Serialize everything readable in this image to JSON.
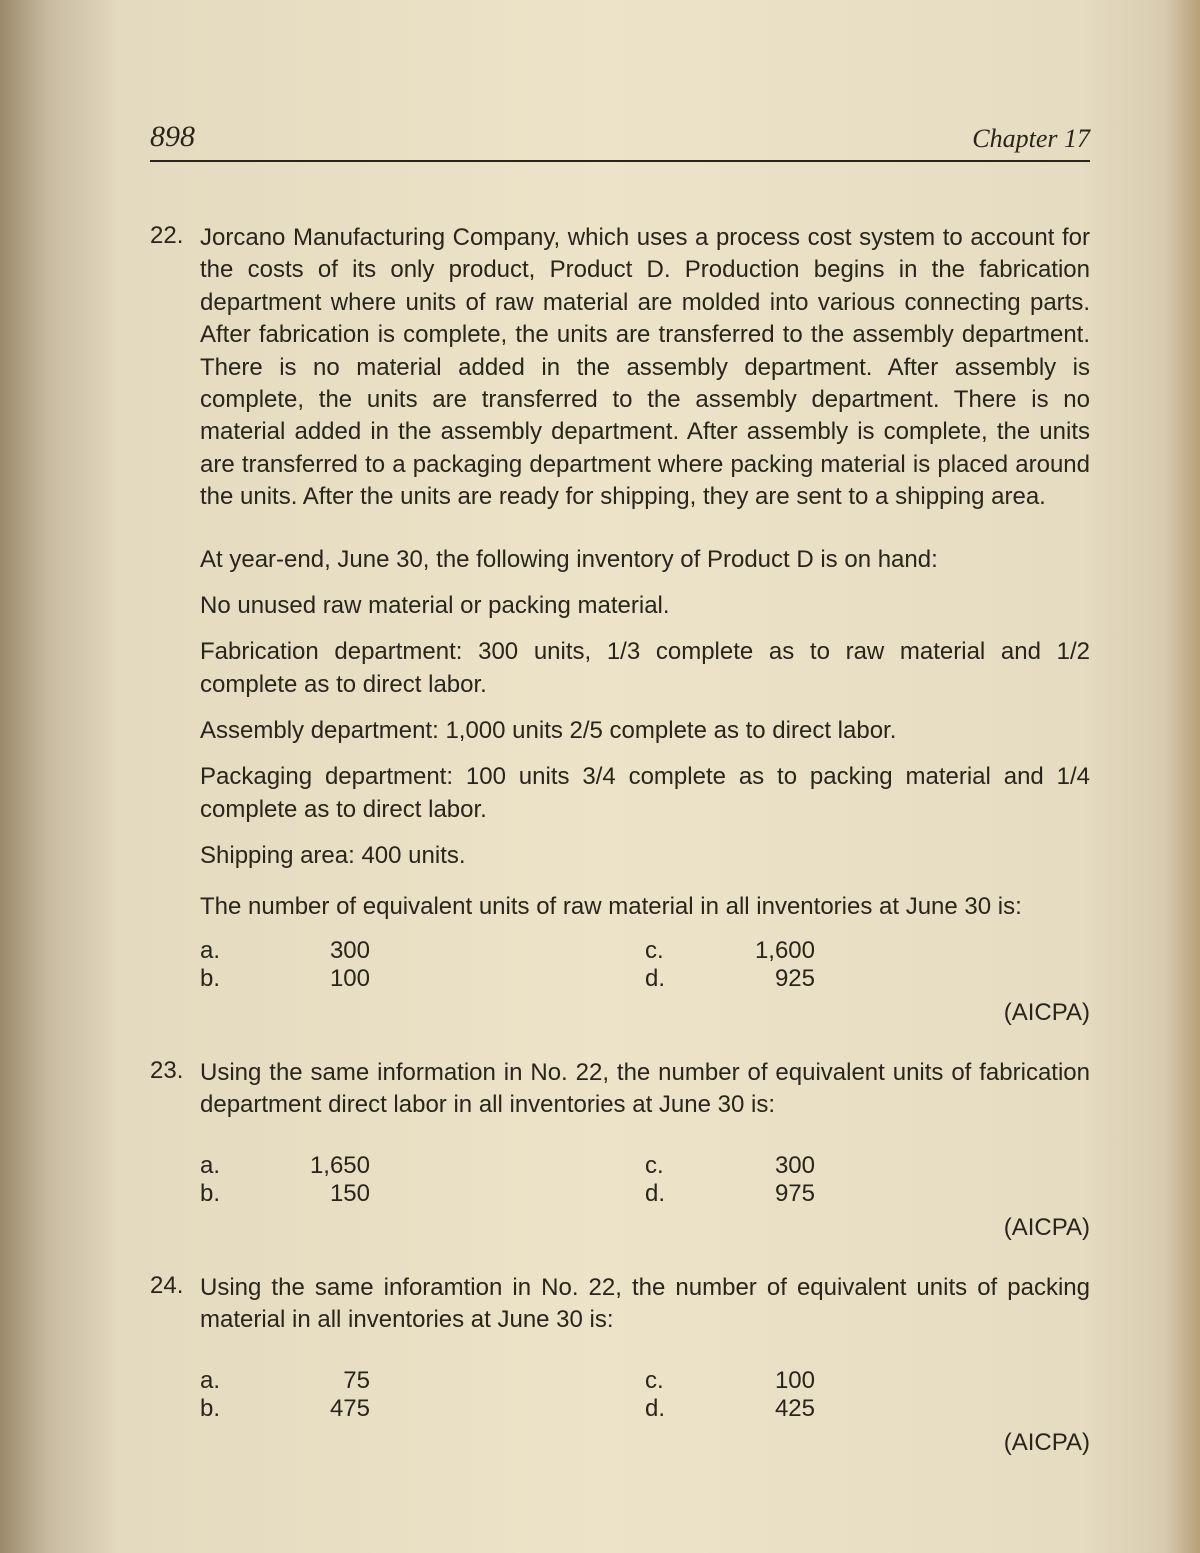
{
  "header": {
    "page_number": "898",
    "chapter": "Chapter 17"
  },
  "questions": [
    {
      "number": "22.",
      "text": "Jorcano Manufacturing Company, which uses a process cost system to account for the costs of its only product, Product D. Production begins in the fabrication department where units of raw material are molded into various connecting parts. After fabrication is complete, the units are transferred to the assembly department. There is no material added in the assembly department. After assembly is complete, the units are transferred to the assembly department. There is no material added in the assembly department. After assembly is complete, the units are transferred to a packaging department where packing material is placed around the units. After the units are ready for shipping, they are sent to a shipping area.",
      "lead": "At year-end, June 30, the following inventory of Product D is on hand:",
      "items": [
        "No unused raw material or packing material.",
        "Fabrication department: 300 units, 1/3 complete as to raw material and 1/2 complete as to direct labor.",
        "Assembly department: 1,000 units 2/5 complete as to direct labor.",
        "Packaging department: 100 units 3/4 complete as to packing material and 1/4 complete as to direct labor.",
        "Shipping area: 400 units."
      ],
      "ask": "The number of equivalent units of raw material in all inventories at June 30 is:",
      "options": {
        "a": {
          "label": "a.",
          "value": "300"
        },
        "b": {
          "label": "b.",
          "value": "100"
        },
        "c": {
          "label": "c.",
          "value": "1,600"
        },
        "d": {
          "label": "d.",
          "value": "925"
        }
      },
      "attribution": "(AICPA)"
    },
    {
      "number": "23.",
      "text": "Using the same information in No. 22, the number of equivalent units of fabrication department direct labor in all inventories at June 30 is:",
      "options": {
        "a": {
          "label": "a.",
          "value": "1,650"
        },
        "b": {
          "label": "b.",
          "value": "150"
        },
        "c": {
          "label": "c.",
          "value": "300"
        },
        "d": {
          "label": "d.",
          "value": "975"
        }
      },
      "attribution": "(AICPA)"
    },
    {
      "number": "24.",
      "text": "Using the same inforamtion in No. 22, the number of equivalent units of packing material in all inventories at June 30 is:",
      "options": {
        "a": {
          "label": "a.",
          "value": "75"
        },
        "b": {
          "label": "b.",
          "value": "475"
        },
        "c": {
          "label": "c.",
          "value": "100"
        },
        "d": {
          "label": "d.",
          "value": "425"
        }
      },
      "attribution": "(AICPA)"
    }
  ],
  "colors": {
    "text": "#2a241a",
    "paper": "#ede3c8"
  }
}
